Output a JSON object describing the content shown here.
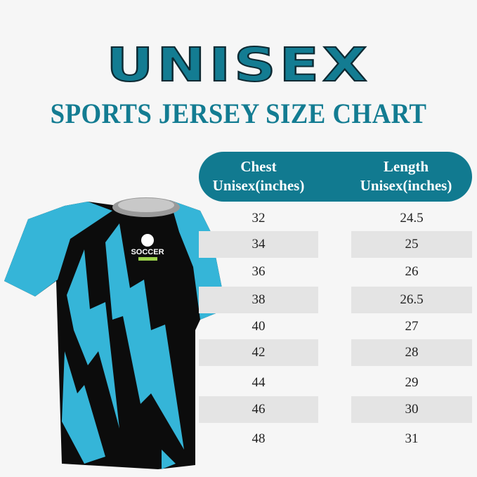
{
  "title": "UNISEX",
  "subtitle": "SPORTS JERSEY SIZE CHART",
  "table": {
    "headers": [
      {
        "line1": "Chest",
        "line2": "Unisex(inches)"
      },
      {
        "line1": "Length",
        "line2": "Unisex(inches)"
      }
    ],
    "rows": [
      {
        "chest": "32",
        "length": "24.5"
      },
      {
        "chest": "34",
        "length": "25"
      },
      {
        "chest": "36",
        "length": "26"
      },
      {
        "chest": "38",
        "length": "26.5"
      },
      {
        "chest": "40",
        "length": "27"
      },
      {
        "chest": "42",
        "length": "28"
      },
      {
        "chest": "44",
        "length": "29"
      },
      {
        "chest": "46",
        "length": "30"
      },
      {
        "chest": "48",
        "length": "31"
      }
    ]
  },
  "jersey": {
    "logo_text": "SOCCER",
    "body_color": "#0c0c0c",
    "accent_color": "#35b5d8"
  },
  "colors": {
    "brand": "#137c92",
    "header_bg": "#117a90",
    "row_shade": "#e4e4e4"
  }
}
